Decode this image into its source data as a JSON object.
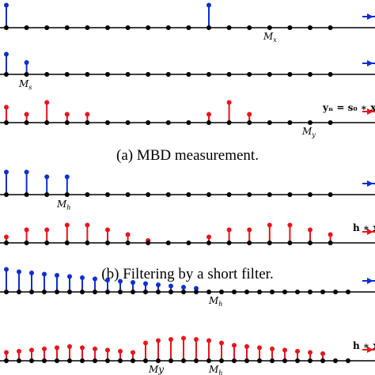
{
  "colors": {
    "blue": "#0b2fd0",
    "red": "#e8141b",
    "axis": "#000000",
    "dot": "#000000"
  },
  "captions": {
    "a": "(a) MBD measurement.",
    "b": "(b) Filtering by a short filter.",
    "c": ""
  },
  "equations": {
    "row3": "yₙ = s₀ ∗ x",
    "row5": "h ∗ x",
    "row7": "h ∗ x"
  },
  "labels": {
    "row1": "M_x",
    "row2": "M_s",
    "row3": "M_y",
    "row4": "M_h",
    "row6": "M_h",
    "row7a": "My",
    "row7b": "M_h"
  },
  "rows": [
    {
      "id": "row1",
      "color": "blue",
      "dots": 17,
      "stems": [
        0.95,
        0,
        0,
        0,
        0,
        0,
        0,
        0,
        0,
        0,
        0.95
      ]
    },
    {
      "id": "row2",
      "color": "blue",
      "dots": 17,
      "stems": [
        0.85,
        0.5
      ]
    },
    {
      "id": "row3",
      "color": "red",
      "dots": 17,
      "stems": [
        0.65,
        0.35,
        0.85,
        0.35,
        0.35,
        0,
        0,
        0,
        0,
        0,
        0.35,
        0.85,
        0.35
      ]
    },
    {
      "id": "row4",
      "color": "blue",
      "dots": 17,
      "stems": [
        0.95,
        0.95,
        0.75,
        0.75
      ]
    },
    {
      "id": "row5",
      "color": "red",
      "dots": 17,
      "stems": [
        0.25,
        0.55,
        0.55,
        0.75,
        0.75,
        0.55,
        0.35,
        0.1,
        0,
        0,
        0.25,
        0.55,
        0.55,
        0.75,
        0.75,
        0.55,
        0.35
      ]
    },
    {
      "id": "row6",
      "color": "blue",
      "dots": 28,
      "stems": [
        0.95,
        0.85,
        0.8,
        0.75,
        0.7,
        0.65,
        0.6,
        0.55,
        0.5,
        0.45,
        0.4,
        0.35,
        0.3,
        0.25,
        0.2,
        0.15
      ]
    },
    {
      "id": "row7",
      "color": "red",
      "dots": 28,
      "stems": [
        0.35,
        0.4,
        0.45,
        0.5,
        0.55,
        0.6,
        0.55,
        0.5,
        0.45,
        0.4,
        0.35,
        0.75,
        0.85,
        0.9,
        0.95,
        0.9,
        0.85,
        0.75,
        0.65,
        0.6,
        0.55,
        0.5,
        0.45,
        0.4,
        0.35,
        0.3
      ]
    }
  ]
}
